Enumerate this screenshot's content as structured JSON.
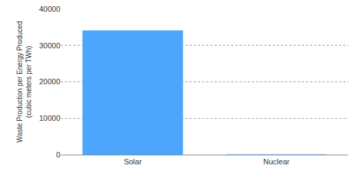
{
  "chart_data": {
    "type": "bar",
    "y_label": "Waste Production per Energy Produced\n(cubic meters per TWh)",
    "categories": [
      "Solar",
      "Nuclear"
    ],
    "values": [
      34100,
      100
    ],
    "color": "#4da6fc",
    "ylim": [
      0,
      40000
    ],
    "yticks": [
      0,
      10000,
      20000,
      30000,
      40000
    ],
    "grid": true
  }
}
